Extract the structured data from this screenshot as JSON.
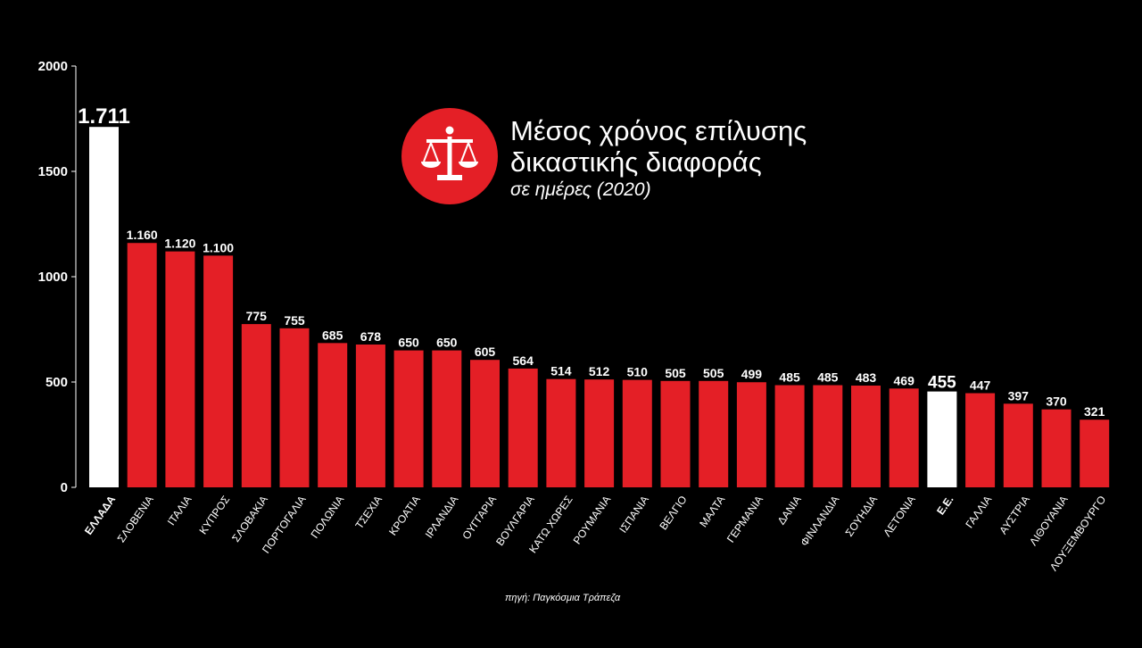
{
  "header": {
    "title_line1": "Μέσος χρόνος επίλυσης",
    "title_line2": "δικαστικής διαφοράς",
    "subtitle": "σε ημέρες (2020)",
    "icon": "scales-of-justice-icon"
  },
  "footer": {
    "source": "πηγή: Παγκόσμια Τράπεζα"
  },
  "colors": {
    "background": "#000000",
    "bar": "#e41f26",
    "highlight": "#ffffff",
    "text": "#ffffff"
  },
  "chart_data": {
    "type": "bar",
    "categories": [
      "ΕΛΛΑΔΑ",
      "ΣΛΟΒΕΝΙΑ",
      "ΙΤΑΛΙΑ",
      "ΚΥΠΡΟΣ",
      "ΣΛΟΒΑΚΙΑ",
      "ΠΟΡΤΟΓΑΛΙΑ",
      "ΠΟΛΩΝΙΑ",
      "ΤΣΕΧΙΑ",
      "ΚΡΟΑΤΙΑ",
      "ΙΡΛΑΝΔΙΑ",
      "ΟΥΓΓΑΡΙΑ",
      "ΒΟΥΛΓΑΡΙΑ",
      "ΚΑΤΩ ΧΩΡΕΣ",
      "ΡΟΥΜΑΝΙΑ",
      "ΙΣΠΑΝΙΑ",
      "ΒΕΛΓΙΟ",
      "ΜΑΛΤΑ",
      "ΓΕΡΜΑΝΙΑ",
      "ΔΑΝΙΑ",
      "ΦΙΝΛΑΝΔΙΑ",
      "ΣΟΥΗΔΙΑ",
      "ΛΕΤΟΝΙΑ",
      "Ε.Ε.",
      "ΓΑΛΛΙΑ",
      "ΑΥΣΤΡΙΑ",
      "ΛΙΘΟΥΑΝΙΑ",
      "ΛΟΥΞΕΜΒΟΥΡΓΟ"
    ],
    "values": [
      1711,
      1160,
      1120,
      1100,
      775,
      755,
      685,
      678,
      650,
      650,
      605,
      564,
      514,
      512,
      510,
      505,
      505,
      499,
      485,
      485,
      483,
      469,
      455,
      447,
      397,
      370,
      321
    ],
    "value_labels": [
      "1.711",
      "1.160",
      "1.120",
      "1.100",
      "775",
      "755",
      "685",
      "678",
      "650",
      "650",
      "605",
      "564",
      "514",
      "512",
      "510",
      "505",
      "505",
      "499",
      "485",
      "485",
      "483",
      "469",
      "455",
      "447",
      "397",
      "370",
      "321"
    ],
    "highlighted": [
      "ΕΛΛΑΔΑ",
      "Ε.Ε."
    ],
    "ylim": [
      0,
      2000
    ],
    "yticks": [
      0,
      500,
      1000,
      1500,
      2000
    ],
    "xlabel": "",
    "ylabel": "",
    "grid": false,
    "legend": "none"
  }
}
